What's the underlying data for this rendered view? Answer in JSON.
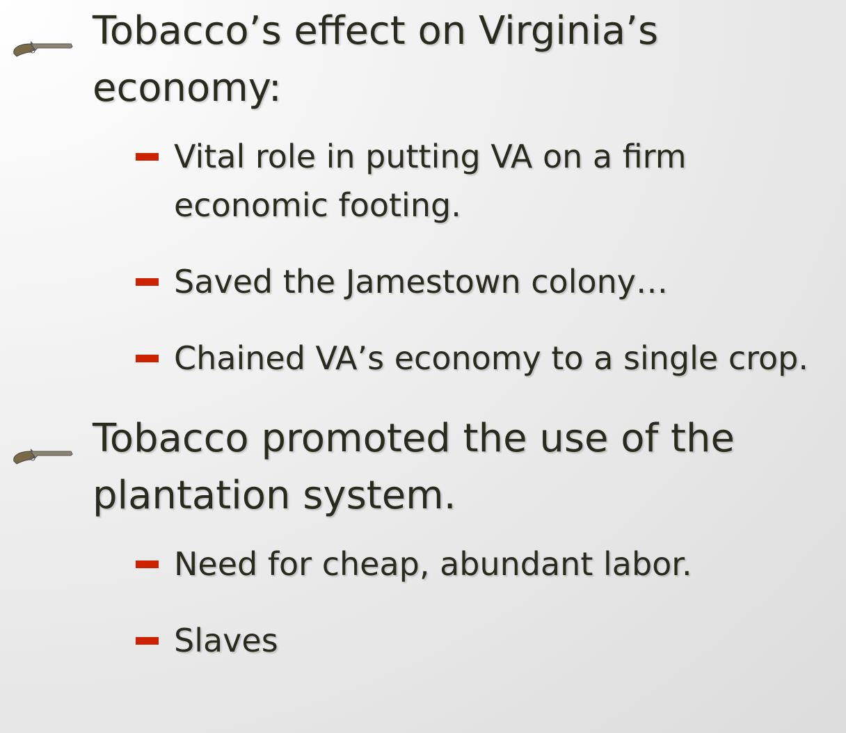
{
  "bullets": [
    {
      "text": "Tobacco’s effect on Virginia’s economy:",
      "subs": [
        "Vital role in putting VA on a firm economic footing.",
        "Saved the Jamestown colony…",
        "Chained VA’s economy to a single crop."
      ]
    },
    {
      "text": "Tobacco promoted the use of the plantation system.",
      "subs": [
        "Need for cheap, abundant labor.",
        "Slaves"
      ]
    }
  ]
}
